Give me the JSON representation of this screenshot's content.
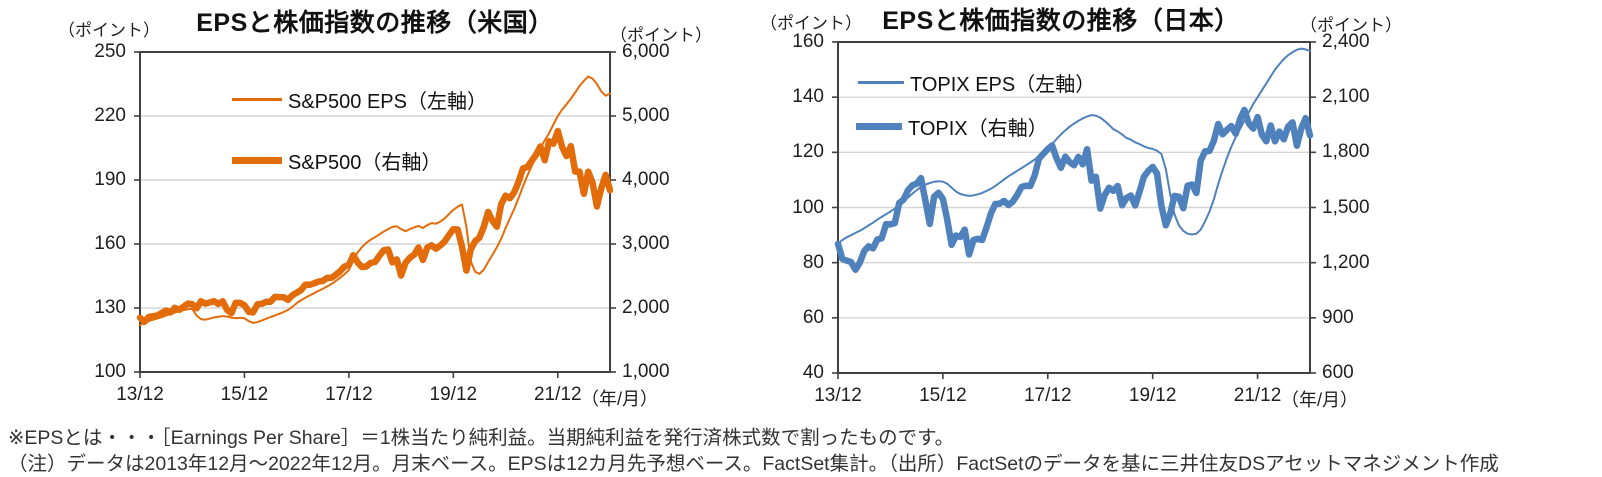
{
  "footnotes": [
    "※EPSとは・・・［Earnings Per Share］＝1株当たり純利益。当期純利益を発行済株式数で割ったものです。",
    "（注）データは2013年12月～2022年12月。月末ベース。EPSは12カ月先予想ベース。FactSet集計。（出所）FactSetのデータを基に三井住友DSアセットマネジメント作成"
  ],
  "colors": {
    "us_line": "#E36C0A",
    "jp_line": "#4F81BD",
    "gridline": "#D6D6D6",
    "plot_border": "#404040"
  },
  "chart_data": [
    {
      "type": "line",
      "title": "EPSと株価指数の推移（米国）",
      "grid": "horizontal-only",
      "legend_position": "inside-top-left",
      "left_axis": {
        "unit": "（ポイント）",
        "min": 100,
        "max": 250,
        "tick_labels": [
          "250",
          "220",
          "190",
          "160",
          "130",
          "100"
        ]
      },
      "right_axis": {
        "unit": "（ポイント）",
        "min": 1000,
        "max": 6000,
        "tick_labels": [
          "6,000",
          "5,000",
          "4,000",
          "3,000",
          "2,000",
          "1,000"
        ]
      },
      "x_axis": {
        "unit": "（年/月）",
        "start": "2013/12",
        "end": "2022/12",
        "n_points": 109,
        "tick_labels": [
          "13/12",
          "15/12",
          "17/12",
          "19/12",
          "21/12"
        ],
        "tick_month_index": [
          0,
          24,
          48,
          72,
          96
        ]
      },
      "series": [
        {
          "name": "S&P500 EPS（左軸）",
          "axis": "left",
          "style": "thin",
          "color": "#E36C0A",
          "values": [
            122.0,
            123.0,
            123.8,
            124.5,
            125.1,
            125.8,
            126.5,
            127.2,
            127.9,
            128.5,
            129.0,
            129.4,
            129.6,
            126.5,
            124.8,
            124.5,
            125.0,
            125.6,
            125.9,
            126.2,
            126.0,
            125.5,
            125.2,
            125.4,
            125.2,
            123.8,
            123.0,
            123.4,
            124.2,
            125.0,
            125.8,
            126.5,
            127.3,
            128.1,
            129.1,
            130.5,
            132.3,
            133.6,
            134.8,
            135.9,
            136.9,
            138.0,
            139.0,
            140.1,
            141.3,
            142.7,
            144.2,
            145.8,
            147.8,
            152.0,
            156.0,
            158.5,
            160.5,
            162.0,
            163.2,
            164.5,
            165.8,
            167.0,
            168.0,
            168.3,
            167.0,
            166.0,
            167.0,
            167.8,
            168.5,
            167.5,
            168.8,
            169.8,
            169.5,
            170.5,
            172.0,
            174.0,
            176.0,
            177.5,
            178.5,
            168.0,
            152.0,
            147.0,
            146.0,
            148.0,
            151.5,
            155.0,
            158.5,
            162.5,
            167.5,
            172.0,
            176.5,
            181.5,
            187.0,
            192.0,
            196.5,
            201.0,
            205.0,
            208.5,
            212.0,
            216.0,
            220.0,
            223.0,
            225.5,
            228.0,
            231.0,
            234.0,
            236.5,
            238.5,
            237.5,
            235.0,
            231.5,
            229.5,
            230.5
          ]
        },
        {
          "name": "S&P500（右軸）",
          "axis": "right",
          "style": "thick",
          "color": "#E36C0A",
          "values": [
            1848,
            1783,
            1859,
            1872,
            1884,
            1924,
            1960,
            1931,
            2003,
            1972,
            2018,
            2068,
            2059,
            1995,
            2105,
            2068,
            2086,
            2107,
            2063,
            2104,
            1972,
            1920,
            2079,
            2080,
            2044,
            1940,
            1932,
            2060,
            2065,
            2097,
            2099,
            2174,
            2171,
            2168,
            2126,
            2199,
            2239,
            2279,
            2364,
            2363,
            2384,
            2412,
            2423,
            2470,
            2472,
            2519,
            2575,
            2648,
            2674,
            2824,
            2714,
            2641,
            2648,
            2705,
            2718,
            2816,
            2902,
            2914,
            2712,
            2760,
            2507,
            2704,
            2784,
            2834,
            2946,
            2752,
            2942,
            2980,
            2926,
            2977,
            3038,
            3141,
            3231,
            3226,
            2954,
            2585,
            2912,
            3044,
            3100,
            3271,
            3500,
            3363,
            3270,
            3622,
            3756,
            3714,
            3811,
            3973,
            4181,
            4204,
            4298,
            4395,
            4523,
            4308,
            4605,
            4567,
            4766,
            4516,
            4374,
            4530,
            4132,
            4132,
            3785,
            4130,
            3955,
            3586,
            3872,
            4080,
            3840
          ]
        }
      ]
    },
    {
      "type": "line",
      "title": "EPSと株価指数の推移（日本）",
      "grid": "horizontal-only",
      "legend_position": "inside-top-left",
      "left_axis": {
        "unit": "（ポイント）",
        "min": 40,
        "max": 160,
        "tick_labels": [
          "160",
          "140",
          "120",
          "100",
          "80",
          "60",
          "40"
        ]
      },
      "right_axis": {
        "unit": "（ポイント）",
        "min": 600,
        "max": 2400,
        "tick_labels": [
          "2,400",
          "2,100",
          "1,800",
          "1,500",
          "1,200",
          "900",
          "600"
        ]
      },
      "x_axis": {
        "unit": "（年/月）",
        "start": "2013/12",
        "end": "2022/12",
        "n_points": 109,
        "tick_labels": [
          "13/12",
          "15/12",
          "17/12",
          "19/12",
          "21/12"
        ],
        "tick_month_index": [
          0,
          24,
          48,
          72,
          96
        ]
      },
      "series": [
        {
          "name": "TOPIX EPS（左軸）",
          "axis": "left",
          "style": "thin",
          "color": "#4F81BD",
          "values": [
            87.0,
            88.2,
            89.2,
            90.0,
            90.8,
            91.6,
            92.5,
            93.5,
            94.5,
            95.6,
            96.6,
            97.6,
            98.5,
            99.6,
            100.8,
            102.2,
            103.6,
            105.0,
            106.3,
            107.4,
            108.3,
            108.9,
            109.3,
            109.5,
            109.4,
            108.6,
            107.2,
            105.8,
            104.9,
            104.5,
            104.2,
            104.4,
            104.8,
            105.3,
            106.0,
            106.8,
            107.8,
            109.0,
            110.2,
            111.3,
            112.3,
            113.3,
            114.3,
            115.3,
            116.3,
            117.4,
            118.6,
            120.0,
            121.4,
            123.0,
            124.8,
            126.5,
            128.0,
            129.3,
            130.4,
            131.4,
            132.3,
            133.0,
            133.5,
            133.3,
            132.6,
            131.4,
            130.0,
            128.4,
            127.6,
            126.5,
            125.2,
            124.6,
            123.6,
            123.0,
            122.2,
            121.6,
            121.2,
            120.6,
            119.4,
            114.0,
            105.0,
            97.5,
            93.5,
            91.5,
            90.5,
            90.2,
            90.5,
            92.0,
            95.0,
            98.5,
            103.0,
            108.5,
            113.5,
            118.0,
            122.0,
            125.5,
            128.5,
            131.5,
            134.5,
            137.5,
            140.0,
            142.5,
            145.0,
            147.5,
            150.0,
            152.0,
            153.8,
            155.2,
            156.3,
            157.2,
            157.6,
            157.3,
            156.8
          ]
        },
        {
          "name": "TOPIX（右軸）",
          "axis": "right",
          "style": "thick",
          "color": "#4F81BD",
          "values": [
            1302,
            1220,
            1211,
            1203,
            1162,
            1201,
            1263,
            1289,
            1278,
            1326,
            1333,
            1410,
            1408,
            1415,
            1524,
            1543,
            1593,
            1620,
            1630,
            1660,
            1537,
            1411,
            1558,
            1580,
            1547,
            1432,
            1297,
            1347,
            1340,
            1380,
            1245,
            1323,
            1330,
            1323,
            1393,
            1469,
            1519,
            1521,
            1536,
            1513,
            1532,
            1568,
            1612,
            1618,
            1617,
            1675,
            1766,
            1792,
            1818,
            1837,
            1768,
            1716,
            1777,
            1747,
            1730,
            1775,
            1735,
            1817,
            1646,
            1667,
            1494,
            1567,
            1607,
            1591,
            1617,
            1512,
            1551,
            1565,
            1511,
            1587,
            1667,
            1699,
            1721,
            1685,
            1510,
            1403,
            1464,
            1563,
            1559,
            1496,
            1618,
            1625,
            1579,
            1755,
            1805,
            1808,
            1864,
            1954,
            1898,
            1923,
            1943,
            1901,
            1981,
            2031,
            1958,
            1929,
            1992,
            1896,
            1860,
            1946,
            1860,
            1913,
            1871,
            1940,
            1963,
            1836,
            1930,
            1986,
            1892
          ]
        }
      ]
    }
  ]
}
